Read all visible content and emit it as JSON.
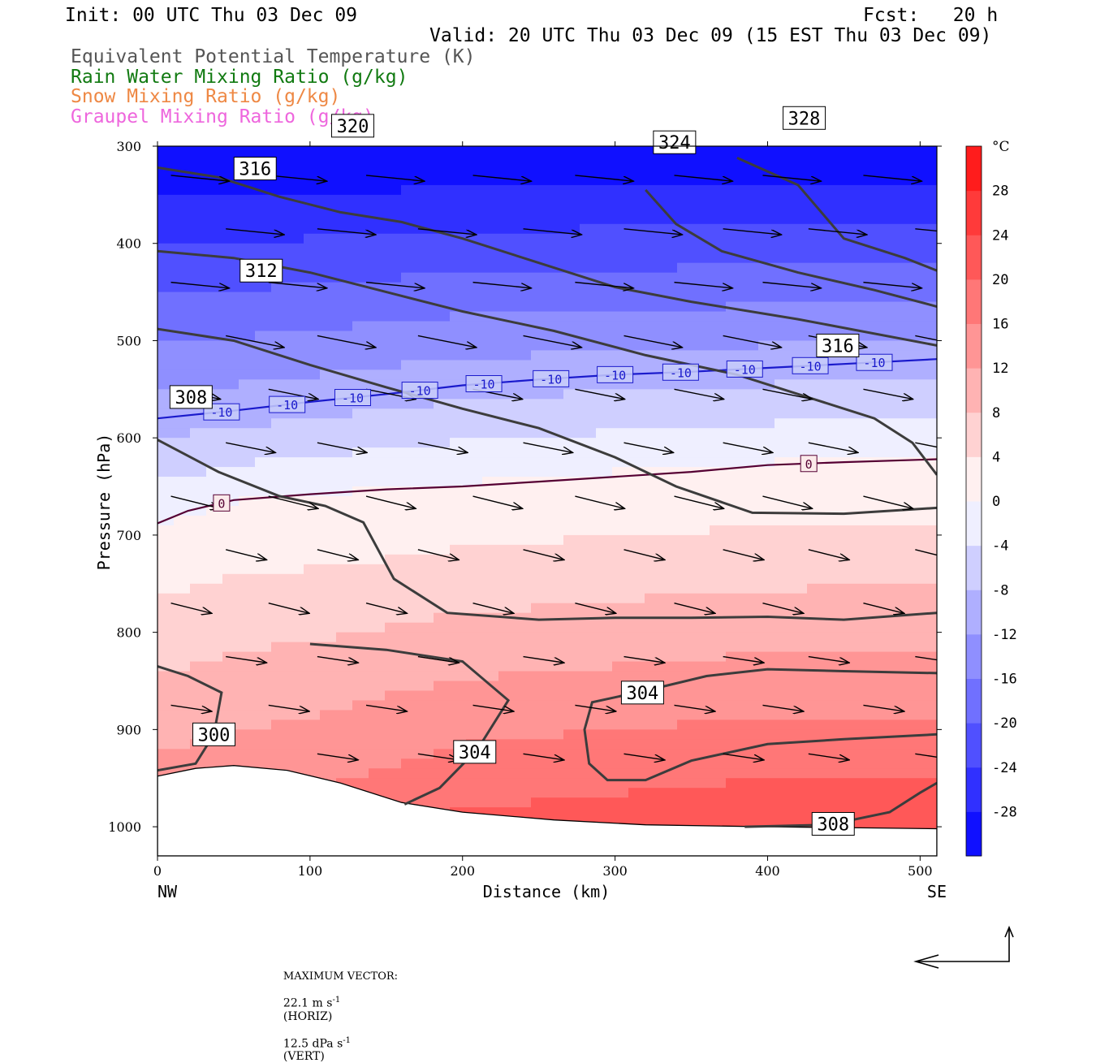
{
  "header": {
    "init": "Init: 00 UTC Thu 03 Dec 09",
    "fcst": "Fcst:   20 h",
    "valid": "Valid: 20 UTC Thu 03 Dec 09 (15 EST Thu 03 Dec 09)",
    "legend": [
      {
        "label": "Equivalent Potential Temperature (K)",
        "color": "#555555"
      },
      {
        "label": "Rain Water Mixing Ratio (g/kg)",
        "color": "#117a11"
      },
      {
        "label": "Snow Mixing Ratio (g/kg)",
        "color": "#ee8844"
      },
      {
        "label": "Graupel Mixing Ratio (g/kg)",
        "color": "#ee66dd"
      }
    ]
  },
  "chart_data": {
    "type": "heatmap",
    "description_fields": "temperature shading (°C) with theta-e contours (K), isotherms (°C) and wind vectors",
    "xlabel": "Distance (km)",
    "ylabel": "Pressure (hPa)",
    "x_ticks": [
      0,
      100,
      200,
      300,
      400,
      500
    ],
    "y_ticks": [
      300,
      400,
      500,
      600,
      700,
      800,
      900,
      1000
    ],
    "xlim": [
      0,
      511
    ],
    "ylim": [
      1030,
      300
    ],
    "y_reversed": true,
    "left_end_label": "NW",
    "right_end_label": "SE",
    "colorbar": {
      "unit": "°C",
      "ticks": [
        28,
        24,
        20,
        16,
        12,
        8,
        4,
        0,
        -4,
        -8,
        -12,
        -16,
        -20,
        -24,
        -28
      ],
      "range": [
        -32,
        32
      ],
      "cold_color": "#0000ff",
      "warm_color": "#ff0000"
    },
    "temperature_field": {
      "sfc_C_by_x": [
        [
          0,
          16
        ],
        [
          100,
          18
        ],
        [
          200,
          21
        ],
        [
          300,
          22
        ],
        [
          400,
          23
        ],
        [
          511,
          23
        ]
      ],
      "freezing_level_hPa_by_x": [
        [
          0,
          688
        ],
        [
          50,
          664
        ],
        [
          150,
          653
        ],
        [
          250,
          640
        ],
        [
          400,
          625
        ],
        [
          511,
          622
        ]
      ],
      "minus10_level_hPa_by_x": [
        [
          0,
          580
        ],
        [
          100,
          560
        ],
        [
          200,
          540
        ],
        [
          300,
          532
        ],
        [
          400,
          525
        ],
        [
          511,
          518
        ]
      ]
    },
    "isotherms": [
      {
        "value": 0,
        "color": "#550033",
        "label_positions_km": [
          42,
          427
        ],
        "points": [
          [
            0,
            688
          ],
          [
            20,
            675
          ],
          [
            50,
            664
          ],
          [
            100,
            658
          ],
          [
            150,
            653
          ],
          [
            200,
            650
          ],
          [
            250,
            645
          ],
          [
            300,
            640
          ],
          [
            350,
            635
          ],
          [
            400,
            628
          ],
          [
            450,
            625
          ],
          [
            511,
            622
          ]
        ]
      },
      {
        "value": -10,
        "color": "#1a1acc",
        "label_positions_km": [
          42,
          85,
          128,
          172,
          214,
          258,
          300,
          343,
          385,
          428,
          470
        ],
        "points": [
          [
            0,
            580
          ],
          [
            50,
            572
          ],
          [
            100,
            563
          ],
          [
            150,
            555
          ],
          [
            200,
            546
          ],
          [
            250,
            540
          ],
          [
            300,
            535
          ],
          [
            350,
            532
          ],
          [
            400,
            528
          ],
          [
            450,
            524
          ],
          [
            511,
            519
          ]
        ]
      }
    ],
    "theta_e_contours": [
      {
        "label": "300",
        "label_km": 37,
        "label_hPa": 905,
        "points": [
          [
            0,
            835
          ],
          [
            20,
            845
          ],
          [
            42,
            862
          ],
          [
            37,
            905
          ],
          [
            25,
            935
          ],
          [
            0,
            942
          ]
        ]
      },
      {
        "label": "304",
        "label_km": 208,
        "label_hPa": 923,
        "points": [
          [
            100,
            812
          ],
          [
            150,
            818
          ],
          [
            200,
            830
          ],
          [
            230,
            870
          ],
          [
            210,
            920
          ],
          [
            185,
            960
          ],
          [
            162,
            977
          ]
        ]
      },
      {
        "label": "304",
        "label_km": 318,
        "label_hPa": 862,
        "points": [
          [
            511,
            842
          ],
          [
            450,
            840
          ],
          [
            400,
            838
          ],
          [
            360,
            845
          ],
          [
            320,
            860
          ],
          [
            285,
            872
          ],
          [
            280,
            900
          ],
          [
            283,
            935
          ],
          [
            295,
            952
          ],
          [
            320,
            952
          ],
          [
            350,
            932
          ],
          [
            400,
            915
          ],
          [
            450,
            910
          ],
          [
            511,
            905
          ]
        ]
      },
      {
        "label": "308",
        "label_km": 22,
        "label_hPa": 558,
        "points": [
          [
            0,
            602
          ],
          [
            40,
            635
          ],
          [
            80,
            660
          ],
          [
            110,
            670
          ],
          [
            135,
            687
          ],
          [
            155,
            745
          ],
          [
            190,
            780
          ],
          [
            250,
            787
          ],
          [
            300,
            785
          ],
          [
            350,
            785
          ],
          [
            400,
            784
          ],
          [
            450,
            787
          ],
          [
            511,
            780
          ]
        ]
      },
      {
        "label": "308",
        "label_km": 443,
        "label_hPa": 997,
        "points": [
          [
            385,
            1000
          ],
          [
            440,
            998
          ],
          [
            480,
            985
          ],
          [
            500,
            965
          ],
          [
            511,
            955
          ]
        ]
      },
      {
        "label": "312",
        "label_km": 68,
        "label_hPa": 428,
        "points": [
          [
            0,
            488
          ],
          [
            50,
            500
          ],
          [
            100,
            525
          ],
          [
            150,
            548
          ],
          [
            200,
            570
          ],
          [
            250,
            590
          ],
          [
            300,
            620
          ],
          [
            340,
            650
          ],
          [
            390,
            677
          ],
          [
            450,
            678
          ],
          [
            511,
            672
          ]
        ]
      },
      {
        "label": "316",
        "label_km": 64,
        "label_hPa": 323,
        "points": [
          [
            0,
            408
          ],
          [
            50,
            415
          ],
          [
            100,
            430
          ],
          [
            150,
            450
          ],
          [
            200,
            470
          ],
          [
            260,
            490
          ],
          [
            320,
            515
          ],
          [
            380,
            535
          ],
          [
            430,
            560
          ],
          [
            470,
            580
          ],
          [
            495,
            605
          ],
          [
            511,
            638
          ]
        ]
      },
      {
        "label": "316",
        "label_km": 446,
        "label_hPa": 505
      },
      {
        "label": "320",
        "label_km": 128,
        "label_hPa": 279,
        "points": [
          [
            0,
            322
          ],
          [
            40,
            332
          ],
          [
            80,
            352
          ],
          [
            120,
            368
          ],
          [
            160,
            378
          ],
          [
            200,
            395
          ],
          [
            250,
            420
          ],
          [
            300,
            445
          ],
          [
            350,
            460
          ],
          [
            420,
            478
          ],
          [
            511,
            505
          ]
        ]
      },
      {
        "label": "324",
        "label_km": 339,
        "label_hPa": 296,
        "points": [
          [
            320,
            345
          ],
          [
            340,
            380
          ],
          [
            370,
            408
          ],
          [
            420,
            430
          ],
          [
            470,
            448
          ],
          [
            511,
            465
          ]
        ]
      },
      {
        "label": "328",
        "label_km": 424,
        "label_hPa": 271,
        "points": [
          [
            380,
            312
          ],
          [
            420,
            340
          ],
          [
            450,
            395
          ],
          [
            490,
            415
          ],
          [
            511,
            428
          ]
        ]
      }
    ],
    "wind_vectors": {
      "dx_km": 64,
      "columns_km": [
        12,
        48,
        76,
        108,
        140,
        174,
        210,
        243,
        277,
        309,
        342,
        374,
        400,
        430,
        466,
        500
      ],
      "note": "flow from NW toward SE, strongest aloft"
    },
    "max_vector": {
      "label": "MAXIMUM VECTOR:",
      "horiz": "22.1 m s",
      "horiz_exp": "-1",
      "horiz_tag": "(HORIZ)",
      "vert": "12.5 dPa s",
      "vert_exp": "-1",
      "vert_tag": "(VERT)"
    }
  }
}
